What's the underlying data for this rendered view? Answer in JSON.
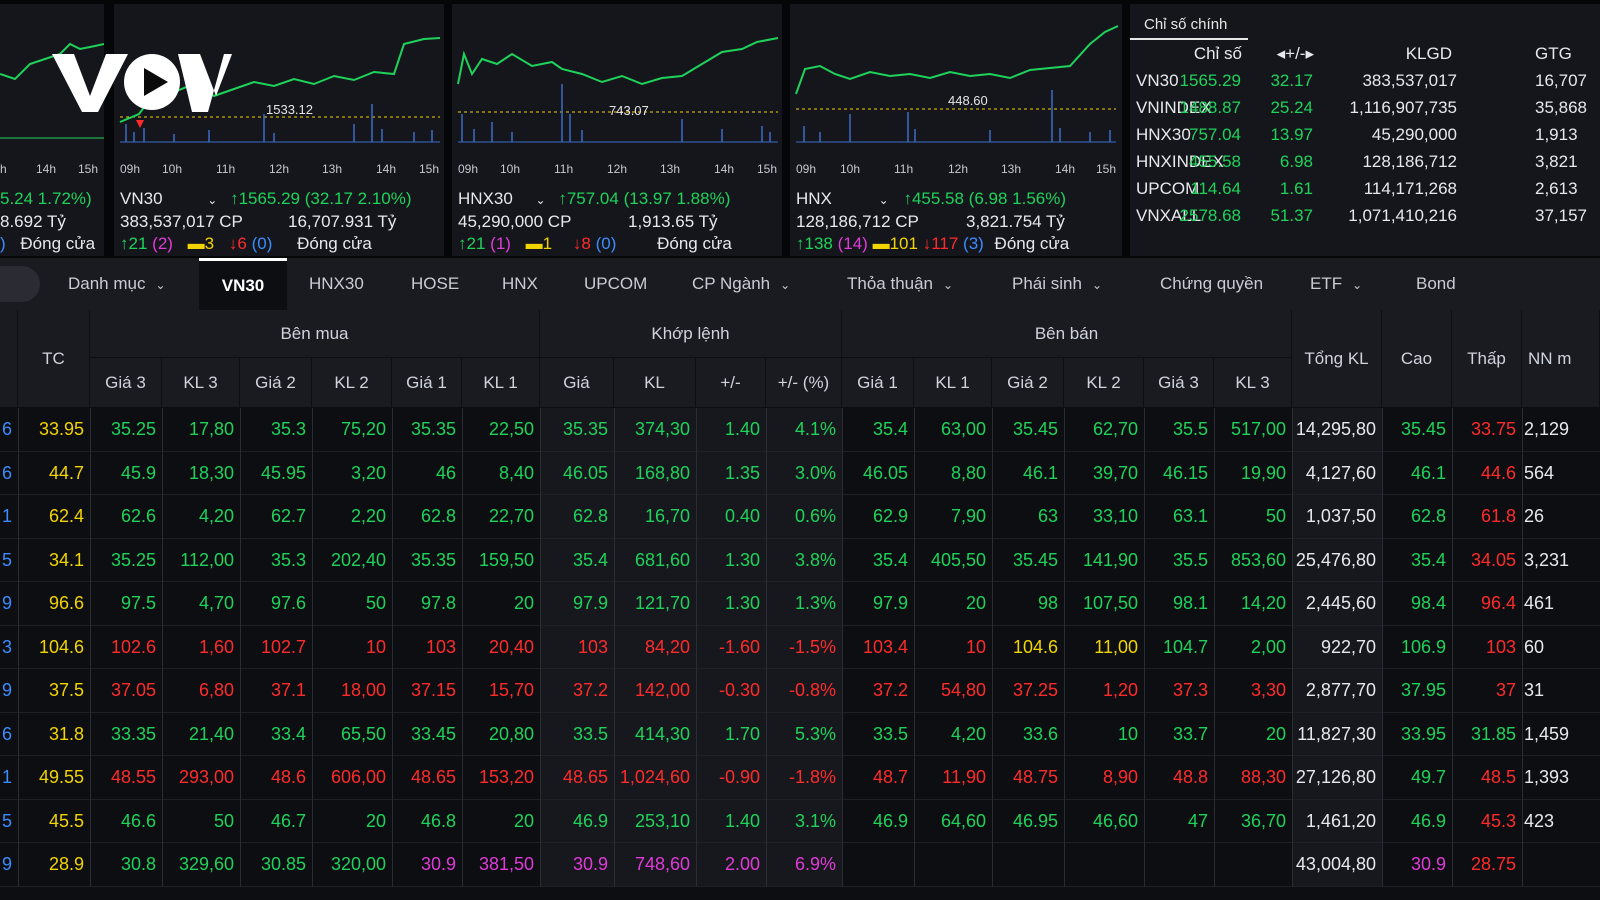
{
  "colors": {
    "up": "#1fd25a",
    "down": "#ff2b2b",
    "ref": "#f2d400",
    "ceil": "#e03bd9",
    "floor": "#3b8cff"
  },
  "logo_text": "VOV",
  "panels": [
    {
      "name": "VNINDEX-partial",
      "ticks": [
        "h",
        "14h",
        "15h"
      ],
      "line1": "5.24  1.72%)",
      "line2": "8.692 Tỷ",
      "line3_floor": ")",
      "closed": "Đóng cửa"
    },
    {
      "name": "VN30",
      "ticks": [
        "09h",
        "10h",
        "11h",
        "12h",
        "13h",
        "14h",
        "15h"
      ],
      "chart_label": "1533.12",
      "title": "VN30",
      "arrow": "↑",
      "value": "1565.29",
      "change": "(32.17  2.10%)",
      "volume": "383,537,017 CP",
      "value_traded": "16,707.931 Tỷ",
      "adv": "21",
      "ceil": "(2)",
      "unch": "3",
      "dec": "6",
      "floor": "(0)",
      "closed": "Đóng cửa"
    },
    {
      "name": "HNX30",
      "ticks": [
        "09h",
        "10h",
        "11h",
        "12h",
        "13h",
        "14h",
        "15h"
      ],
      "chart_label": "743.07",
      "title": "HNX30",
      "arrow": "↑",
      "value": "757.04",
      "change": "(13.97  1.88%)",
      "volume": "45,290,000 CP",
      "value_traded": "1,913.65 Tỷ",
      "adv": "21",
      "ceil": "(1)",
      "unch": "1",
      "dec": "8",
      "floor": "(0)",
      "closed": "Đóng cửa"
    },
    {
      "name": "HNX",
      "ticks": [
        "09h",
        "10h",
        "11h",
        "12h",
        "13h",
        "14h",
        "15h"
      ],
      "chart_label": "448.60",
      "title": "HNX",
      "arrow": "↑",
      "value": "455.58",
      "change": "(6.98  1.56%)",
      "volume": "128,186,712 CP",
      "value_traded": "3,821.754 Tỷ",
      "adv": "138",
      "ceil": "(14)",
      "unch": "101",
      "dec": "117",
      "floor": "(3)",
      "closed": "Đóng cửa"
    }
  ],
  "index_table": {
    "tab": "Chỉ số chính",
    "headers": [
      "Chỉ số",
      "◂+/-▸",
      "KLGD",
      "GTG"
    ],
    "rows": [
      [
        "VN30",
        "1565.29",
        "32.17",
        "383,537,017",
        "16,707"
      ],
      [
        "VNINDEX",
        "1488.87",
        "25.24",
        "1,116,907,735",
        "35,868"
      ],
      [
        "HNX30",
        "757.04",
        "13.97",
        "45,290,000",
        "1,913"
      ],
      [
        "HNXINDEX",
        "455.58",
        "6.98",
        "128,186,712",
        "3,821"
      ],
      [
        "UPCOM",
        "114.64",
        "1.61",
        "114,171,268",
        "2,613"
      ],
      [
        "VNXALL",
        "2578.68",
        "51.37",
        "1,071,410,216",
        "37,157"
      ]
    ]
  },
  "nav": {
    "tabs": [
      "Danh mục",
      "VN30",
      "HNX30",
      "HOSE",
      "HNX",
      "UPCOM",
      "CP Ngành",
      "Thỏa thuận",
      "Phái sinh",
      "Chứng quyền",
      "ETF",
      "Bond"
    ],
    "chevrons": [
      true,
      false,
      false,
      false,
      false,
      false,
      true,
      true,
      true,
      false,
      true,
      false
    ],
    "chevron_glyph": "⌄",
    "active": "VN30"
  },
  "table": {
    "groups": [
      "Bên mua",
      "Khớp lệnh",
      "Bên bán"
    ],
    "tc": "TC",
    "tong_kl": "Tổng KL",
    "cao": "Cao",
    "thap": "Thấp",
    "nn": "NN m",
    "sub": [
      "Giá 3",
      "KL 3",
      "Giá 2",
      "KL 2",
      "Giá 1",
      "KL 1",
      "Giá",
      "KL",
      "+/-",
      "+/- (%)",
      "Giá 1",
      "KL 1",
      "Giá 2",
      "KL 2",
      "Giá 3",
      "KL 3"
    ],
    "rows": [
      {
        "c0": [
          "6",
          "b"
        ],
        "tc": "33.95",
        "cells": [
          [
            "35.25",
            "g"
          ],
          [
            "17,80",
            "g"
          ],
          [
            "35.3",
            "g"
          ],
          [
            "75,20",
            "g"
          ],
          [
            "35.35",
            "g"
          ],
          [
            "22,50",
            "g"
          ],
          [
            "35.35",
            "g"
          ],
          [
            "374,30",
            "g"
          ],
          [
            "1.40",
            "g"
          ],
          [
            "4.1%",
            "g"
          ],
          [
            "35.4",
            "g"
          ],
          [
            "63,00",
            "g"
          ],
          [
            "35.45",
            "g"
          ],
          [
            "62,70",
            "g"
          ],
          [
            "35.5",
            "g"
          ],
          [
            "517,00",
            "g"
          ]
        ],
        "tong": "14,295,80",
        "cao": [
          "35.45",
          "g"
        ],
        "thap": [
          "33.75",
          "r"
        ],
        "nn": "2,129"
      },
      {
        "c0": [
          "6",
          "b"
        ],
        "tc": "44.7",
        "cells": [
          [
            "45.9",
            "g"
          ],
          [
            "18,30",
            "g"
          ],
          [
            "45.95",
            "g"
          ],
          [
            "3,20",
            "g"
          ],
          [
            "46",
            "g"
          ],
          [
            "8,40",
            "g"
          ],
          [
            "46.05",
            "g"
          ],
          [
            "168,80",
            "g"
          ],
          [
            "1.35",
            "g"
          ],
          [
            "3.0%",
            "g"
          ],
          [
            "46.05",
            "g"
          ],
          [
            "8,80",
            "g"
          ],
          [
            "46.1",
            "g"
          ],
          [
            "39,70",
            "g"
          ],
          [
            "46.15",
            "g"
          ],
          [
            "19,90",
            "g"
          ]
        ],
        "tong": "4,127,60",
        "cao": [
          "46.1",
          "g"
        ],
        "thap": [
          "44.6",
          "r"
        ],
        "nn": "564"
      },
      {
        "c0": [
          "1",
          "b"
        ],
        "tc": "62.4",
        "cells": [
          [
            "62.6",
            "g"
          ],
          [
            "4,20",
            "g"
          ],
          [
            "62.7",
            "g"
          ],
          [
            "2,20",
            "g"
          ],
          [
            "62.8",
            "g"
          ],
          [
            "22,70",
            "g"
          ],
          [
            "62.8",
            "g"
          ],
          [
            "16,70",
            "g"
          ],
          [
            "0.40",
            "g"
          ],
          [
            "0.6%",
            "g"
          ],
          [
            "62.9",
            "g"
          ],
          [
            "7,90",
            "g"
          ],
          [
            "63",
            "g"
          ],
          [
            "33,10",
            "g"
          ],
          [
            "63.1",
            "g"
          ],
          [
            "50",
            "g"
          ]
        ],
        "tong": "1,037,50",
        "cao": [
          "62.8",
          "g"
        ],
        "thap": [
          "61.8",
          "r"
        ],
        "nn": "26"
      },
      {
        "c0": [
          "5",
          "b"
        ],
        "tc": "34.1",
        "cells": [
          [
            "35.25",
            "g"
          ],
          [
            "112,00",
            "g"
          ],
          [
            "35.3",
            "g"
          ],
          [
            "202,40",
            "g"
          ],
          [
            "35.35",
            "g"
          ],
          [
            "159,50",
            "g"
          ],
          [
            "35.4",
            "g"
          ],
          [
            "681,60",
            "g"
          ],
          [
            "1.30",
            "g"
          ],
          [
            "3.8%",
            "g"
          ],
          [
            "35.4",
            "g"
          ],
          [
            "405,50",
            "g"
          ],
          [
            "35.45",
            "g"
          ],
          [
            "141,90",
            "g"
          ],
          [
            "35.5",
            "g"
          ],
          [
            "853,60",
            "g"
          ]
        ],
        "tong": "25,476,80",
        "cao": [
          "35.4",
          "g"
        ],
        "thap": [
          "34.05",
          "r"
        ],
        "nn": "3,231"
      },
      {
        "c0": [
          "9",
          "b"
        ],
        "tc": "96.6",
        "cells": [
          [
            "97.5",
            "g"
          ],
          [
            "4,70",
            "g"
          ],
          [
            "97.6",
            "g"
          ],
          [
            "50",
            "g"
          ],
          [
            "97.8",
            "g"
          ],
          [
            "20",
            "g"
          ],
          [
            "97.9",
            "g"
          ],
          [
            "121,70",
            "g"
          ],
          [
            "1.30",
            "g"
          ],
          [
            "1.3%",
            "g"
          ],
          [
            "97.9",
            "g"
          ],
          [
            "20",
            "g"
          ],
          [
            "98",
            "g"
          ],
          [
            "107,50",
            "g"
          ],
          [
            "98.1",
            "g"
          ],
          [
            "14,20",
            "g"
          ]
        ],
        "tong": "2,445,60",
        "cao": [
          "98.4",
          "g"
        ],
        "thap": [
          "96.4",
          "r"
        ],
        "nn": "461"
      },
      {
        "c0": [
          "3",
          "b"
        ],
        "tc": "104.6",
        "cells": [
          [
            "102.6",
            "r"
          ],
          [
            "1,60",
            "r"
          ],
          [
            "102.7",
            "r"
          ],
          [
            "10",
            "r"
          ],
          [
            "103",
            "r"
          ],
          [
            "20,40",
            "r"
          ],
          [
            "103",
            "r"
          ],
          [
            "84,20",
            "r"
          ],
          [
            "-1.60",
            "r"
          ],
          [
            "-1.5%",
            "r"
          ],
          [
            "103.4",
            "r"
          ],
          [
            "10",
            "r"
          ],
          [
            "104.6",
            "y"
          ],
          [
            "11,00",
            "y"
          ],
          [
            "104.7",
            "g"
          ],
          [
            "2,00",
            "g"
          ]
        ],
        "tong": "922,70",
        "cao": [
          "106.9",
          "g"
        ],
        "thap": [
          "103",
          "r"
        ],
        "nn": "60"
      },
      {
        "c0": [
          "9",
          "b"
        ],
        "tc": "37.5",
        "cells": [
          [
            "37.05",
            "r"
          ],
          [
            "6,80",
            "r"
          ],
          [
            "37.1",
            "r"
          ],
          [
            "18,00",
            "r"
          ],
          [
            "37.15",
            "r"
          ],
          [
            "15,70",
            "r"
          ],
          [
            "37.2",
            "r"
          ],
          [
            "142,00",
            "r"
          ],
          [
            "-0.30",
            "r"
          ],
          [
            "-0.8%",
            "r"
          ],
          [
            "37.2",
            "r"
          ],
          [
            "54,80",
            "r"
          ],
          [
            "37.25",
            "r"
          ],
          [
            "1,20",
            "r"
          ],
          [
            "37.3",
            "r"
          ],
          [
            "3,30",
            "r"
          ]
        ],
        "tong": "2,877,70",
        "cao": [
          "37.95",
          "g"
        ],
        "thap": [
          "37",
          "r"
        ],
        "nn": "31"
      },
      {
        "c0": [
          "6",
          "b"
        ],
        "tc": "31.8",
        "cells": [
          [
            "33.35",
            "g"
          ],
          [
            "21,40",
            "g"
          ],
          [
            "33.4",
            "g"
          ],
          [
            "65,50",
            "g"
          ],
          [
            "33.45",
            "g"
          ],
          [
            "20,80",
            "g"
          ],
          [
            "33.5",
            "g"
          ],
          [
            "414,30",
            "g"
          ],
          [
            "1.70",
            "g"
          ],
          [
            "5.3%",
            "g"
          ],
          [
            "33.5",
            "g"
          ],
          [
            "4,20",
            "g"
          ],
          [
            "33.6",
            "g"
          ],
          [
            "10",
            "g"
          ],
          [
            "33.7",
            "g"
          ],
          [
            "20",
            "g"
          ]
        ],
        "tong": "11,827,30",
        "cao": [
          "33.95",
          "g"
        ],
        "thap": [
          "31.85",
          "g"
        ],
        "nn": "1,459"
      },
      {
        "c0": [
          "1",
          "b"
        ],
        "tc": "49.55",
        "cells": [
          [
            "48.55",
            "r"
          ],
          [
            "293,00",
            "r"
          ],
          [
            "48.6",
            "r"
          ],
          [
            "606,00",
            "r"
          ],
          [
            "48.65",
            "r"
          ],
          [
            "153,20",
            "r"
          ],
          [
            "48.65",
            "r"
          ],
          [
            "1,024,60",
            "r"
          ],
          [
            "-0.90",
            "r"
          ],
          [
            "-1.8%",
            "r"
          ],
          [
            "48.7",
            "r"
          ],
          [
            "11,90",
            "r"
          ],
          [
            "48.75",
            "r"
          ],
          [
            "8,90",
            "r"
          ],
          [
            "48.8",
            "r"
          ],
          [
            "88,30",
            "r"
          ]
        ],
        "tong": "27,126,80",
        "cao": [
          "49.7",
          "g"
        ],
        "thap": [
          "48.5",
          "r"
        ],
        "nn": "1,393"
      },
      {
        "c0": [
          "5",
          "b"
        ],
        "tc": "45.5",
        "cells": [
          [
            "46.6",
            "g"
          ],
          [
            "50",
            "g"
          ],
          [
            "46.7",
            "g"
          ],
          [
            "20",
            "g"
          ],
          [
            "46.8",
            "g"
          ],
          [
            "20",
            "g"
          ],
          [
            "46.9",
            "g"
          ],
          [
            "253,10",
            "g"
          ],
          [
            "1.40",
            "g"
          ],
          [
            "3.1%",
            "g"
          ],
          [
            "46.9",
            "g"
          ],
          [
            "64,60",
            "g"
          ],
          [
            "46.95",
            "g"
          ],
          [
            "46,60",
            "g"
          ],
          [
            "47",
            "g"
          ],
          [
            "36,70",
            "g"
          ]
        ],
        "tong": "1,461,20",
        "cao": [
          "46.9",
          "g"
        ],
        "thap": [
          "45.3",
          "r"
        ],
        "nn": "423"
      },
      {
        "c0": [
          "9",
          "b"
        ],
        "tc": "28.9",
        "cells": [
          [
            "30.8",
            "g"
          ],
          [
            "329,60",
            "g"
          ],
          [
            "30.85",
            "g"
          ],
          [
            "320,00",
            "g"
          ],
          [
            "30.9",
            "m"
          ],
          [
            "381,50",
            "m"
          ],
          [
            "30.9",
            "m"
          ],
          [
            "748,60",
            "m"
          ],
          [
            "2.00",
            "m"
          ],
          [
            "6.9%",
            "m"
          ],
          [
            "",
            "g"
          ],
          [
            "",
            "g"
          ],
          [
            "",
            "g"
          ],
          [
            "",
            "g"
          ],
          [
            "",
            "g"
          ],
          [
            "",
            "g"
          ]
        ],
        "tong": "43,004,80",
        "cao": [
          "30.9",
          "m"
        ],
        "thap": [
          "28.75",
          "r"
        ],
        "nn": ""
      }
    ]
  }
}
